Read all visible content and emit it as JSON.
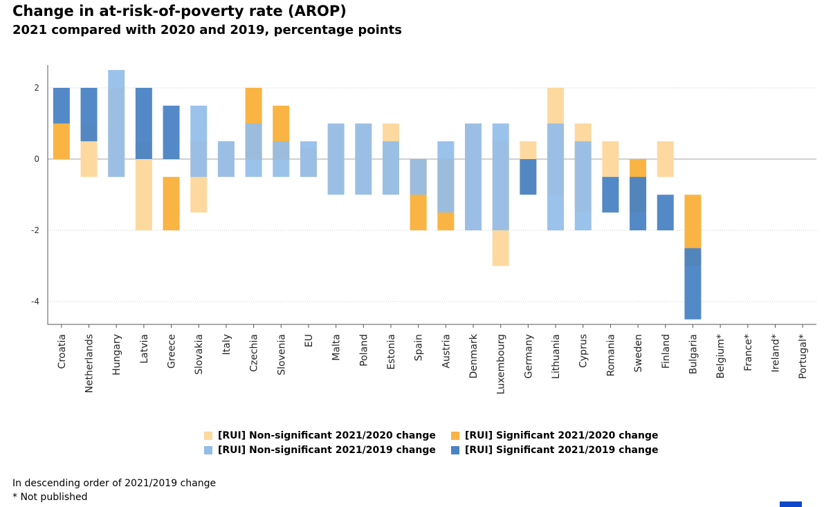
{
  "title": "Change in at-risk-of-poverty rate (AROP)",
  "subtitle": "2021 compared with 2020 and 2019, percentage points",
  "notes": [
    "In descending order of 2021/2019 change",
    "* Not published"
  ],
  "colors": {
    "ns2020": "#fdd9a0",
    "s2020": "#f9b443",
    "ns2019": "#92bde9",
    "s2019": "#4a83c4"
  },
  "chart_data": {
    "type": "bar",
    "subtype": "floating-range",
    "title": "Change in at-risk-of-poverty rate (AROP)",
    "subtitle": "2021 compared with 2020 and 2019, percentage points",
    "ylim": [
      -4.6,
      2.6
    ],
    "yticks": [
      2,
      0,
      -2,
      -4
    ],
    "grid": "horizontal-dotted",
    "legend_position": "bottom-center",
    "categories": [
      "Croatia",
      "Netherlands",
      "Hungary",
      "Latvia",
      "Greece",
      "Slovakia",
      "Italy",
      "Czechia",
      "Slovenia",
      "EU",
      "Malta",
      "Poland",
      "Estonia",
      "Spain",
      "Austria",
      "Denmark",
      "Luxembourg",
      "Germany",
      "Lithuania",
      "Cyprus",
      "Romania",
      "Sweden",
      "Finland",
      "Bulgaria",
      "Belgium*",
      "France*",
      "Ireland*",
      "Portugal*"
    ],
    "series": [
      {
        "name": "[RUI] Non-significant 2021/2020 change",
        "key": "ns2020",
        "ranges": [
          null,
          [
            -0.5,
            1.0
          ],
          [
            -0.5,
            2.0
          ],
          [
            -2.0,
            0.5
          ],
          null,
          [
            -1.5,
            0.5
          ],
          [
            -0.5,
            0.5
          ],
          null,
          null,
          [
            -0.5,
            0.3
          ],
          [
            -1.0,
            1.0
          ],
          [
            -1.0,
            1.0
          ],
          [
            -1.0,
            1.0
          ],
          null,
          null,
          [
            -2.0,
            1.0
          ],
          [
            -3.0,
            0.5
          ],
          [
            -1.0,
            0.5
          ],
          [
            -1.0,
            2.0
          ],
          [
            -1.5,
            1.0
          ],
          [
            -0.5,
            0.5
          ],
          null,
          [
            -0.5,
            0.5
          ],
          null,
          null,
          null,
          null,
          null
        ]
      },
      {
        "name": "[RUI] Significant 2021/2020 change",
        "key": "s2020",
        "ranges": [
          [
            0.0,
            1.0
          ],
          null,
          null,
          null,
          [
            -2.0,
            -0.5
          ],
          null,
          null,
          [
            0.0,
            2.0
          ],
          [
            0.0,
            1.5
          ],
          null,
          null,
          null,
          null,
          [
            -2.0,
            0.0
          ],
          [
            -2.0,
            0.0
          ],
          null,
          null,
          null,
          null,
          null,
          null,
          [
            -1.5,
            0.0
          ],
          null,
          [
            -3.0,
            -1.0
          ],
          null,
          null,
          null,
          null
        ]
      },
      {
        "name": "[RUI] Non-significant 2021/2019 change",
        "key": "ns2019",
        "ranges": [
          null,
          null,
          [
            -0.5,
            2.5
          ],
          null,
          null,
          [
            -0.5,
            1.5
          ],
          [
            -0.5,
            0.5
          ],
          [
            -0.5,
            1.0
          ],
          [
            -0.5,
            0.5
          ],
          [
            -0.5,
            0.5
          ],
          [
            -1.0,
            1.0
          ],
          [
            -1.0,
            1.0
          ],
          [
            -1.0,
            0.5
          ],
          [
            -1.0,
            0.0
          ],
          [
            -1.5,
            0.5
          ],
          [
            -2.0,
            1.0
          ],
          [
            -2.0,
            1.0
          ],
          null,
          [
            -2.0,
            1.0
          ],
          [
            -2.0,
            0.5
          ],
          null,
          null,
          null,
          null,
          null,
          null,
          null,
          null
        ]
      },
      {
        "name": "[RUI] Significant 2021/2019 change",
        "key": "s2019",
        "ranges": [
          [
            1.0,
            2.0
          ],
          [
            0.5,
            2.0
          ],
          null,
          [
            0.0,
            2.0
          ],
          [
            0.0,
            1.5
          ],
          null,
          null,
          null,
          null,
          null,
          null,
          null,
          null,
          null,
          null,
          null,
          null,
          [
            -1.0,
            0.0
          ],
          null,
          null,
          [
            -1.5,
            -0.5
          ],
          [
            -2.0,
            -0.5
          ],
          [
            -2.0,
            -1.0
          ],
          [
            -4.5,
            -2.5
          ],
          null,
          null,
          null,
          null
        ]
      }
    ],
    "legend": [
      {
        "label": "[RUI] Non-significant 2021/2020 change",
        "key": "ns2020"
      },
      {
        "label": "[RUI] Significant 2021/2020 change",
        "key": "s2020"
      },
      {
        "label": "[RUI] Non-significant 2021/2019 change",
        "key": "ns2019"
      },
      {
        "label": "[RUI] Significant 2021/2019 change",
        "key": "s2019"
      }
    ]
  }
}
